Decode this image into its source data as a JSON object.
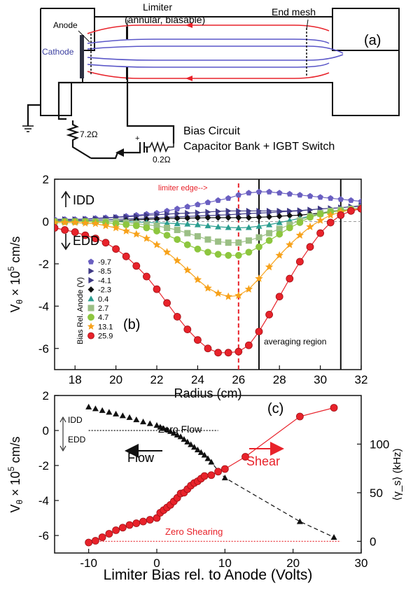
{
  "panel_a": {
    "tag": "(a)",
    "labels": {
      "anode": "Anode",
      "cathode": "Cathode",
      "limiter_line1": "Limiter",
      "limiter_line2": "(annular, biasable)",
      "end_mesh": "End mesh",
      "r1": "7.2Ω",
      "r2": "0.2Ω",
      "bias_line1": "Bias Circuit",
      "bias_line2": "Capacitor Bank + IGBT Switch",
      "plus": "+"
    },
    "colors": {
      "field_red": "#e8222a",
      "field_blue": "#5a56c8",
      "wire": "#111111"
    }
  },
  "chart_data": [
    {
      "type": "line",
      "panel": "(b)",
      "xlabel": "Radius (cm)",
      "ylabel_parts": [
        "V",
        "θ",
        " × 10",
        "5",
        " cm/s"
      ],
      "xlim": [
        17,
        32
      ],
      "ylim": [
        -7,
        2
      ],
      "xticks": [
        18,
        20,
        22,
        24,
        26,
        28,
        30,
        32
      ],
      "yticks": [
        -6,
        -4,
        -2,
        0,
        2
      ],
      "annotations": {
        "limiter_edge": "limiter edge-->",
        "idd": "IDD",
        "edd": "EDD",
        "averaging": "averaging region",
        "legend_title": "Bias Rel. Anode (V)"
      },
      "vlines": [
        {
          "x": 26,
          "style": "dashed-red"
        },
        {
          "x": 27,
          "style": "black"
        },
        {
          "x": 31,
          "style": "black"
        }
      ],
      "series": [
        {
          "name": "-9.7",
          "color": "#6a5fc1",
          "marker": "pentagon",
          "x": [
            17,
            17.5,
            18,
            18.5,
            19,
            19.5,
            20,
            20.5,
            21,
            21.5,
            22,
            22.5,
            23,
            23.5,
            24,
            24.5,
            25,
            25.5,
            26,
            26.5,
            27,
            27.5,
            28,
            28.5,
            29,
            29.5,
            30,
            30.5,
            31,
            31.5,
            32
          ],
          "y": [
            0.1,
            0.1,
            0.1,
            0.12,
            0.15,
            0.18,
            0.2,
            0.25,
            0.3,
            0.35,
            0.4,
            0.5,
            0.6,
            0.7,
            0.8,
            0.9,
            1.0,
            1.1,
            1.25,
            1.35,
            1.4,
            1.4,
            1.35,
            1.3,
            1.25,
            1.2,
            1.15,
            1.1,
            1.05,
            1.0,
            0.95
          ]
        },
        {
          "name": "-8.5",
          "color": "#3f3a86",
          "marker": "triangle-right",
          "x": [
            17,
            17.5,
            18,
            18.5,
            19,
            19.5,
            20,
            20.5,
            21,
            21.5,
            22,
            22.5,
            23,
            23.5,
            24,
            24.5,
            25,
            25.5,
            26,
            26.5,
            27,
            27.5,
            28,
            28.5,
            29,
            29.5,
            30,
            30.5,
            31,
            31.5,
            32
          ],
          "y": [
            0.1,
            0.1,
            0.1,
            0.12,
            0.14,
            0.16,
            0.2,
            0.22,
            0.25,
            0.3,
            0.32,
            0.35,
            0.38,
            0.4,
            0.42,
            0.45,
            0.48,
            0.5,
            0.5,
            0.5,
            0.5,
            0.5,
            0.5,
            0.5,
            0.52,
            0.55,
            0.6,
            0.62,
            0.65,
            0.7,
            0.75
          ]
        },
        {
          "name": "-4.1",
          "color": "#3f3a86",
          "marker": "triangle-right",
          "x": [
            17,
            17.5,
            18,
            18.5,
            19,
            19.5,
            20,
            20.5,
            21,
            21.5,
            22,
            22.5,
            23,
            23.5,
            24,
            24.5,
            25,
            25.5,
            26,
            26.5,
            27,
            27.5,
            28,
            28.5,
            29,
            29.5,
            30,
            30.5,
            31,
            31.5,
            32
          ],
          "y": [
            0.05,
            0.05,
            0.05,
            0.06,
            0.07,
            0.08,
            0.1,
            0.12,
            0.14,
            0.16,
            0.18,
            0.2,
            0.22,
            0.24,
            0.26,
            0.28,
            0.3,
            0.32,
            0.35,
            0.38,
            0.4,
            0.42,
            0.45,
            0.48,
            0.5,
            0.55,
            0.6,
            0.62,
            0.65,
            0.7,
            0.72
          ]
        },
        {
          "name": "-2.3",
          "color": "#111111",
          "marker": "diamond",
          "x": [
            17,
            17.5,
            18,
            18.5,
            19,
            19.5,
            20,
            20.5,
            21,
            21.5,
            22,
            22.5,
            23,
            23.5,
            24,
            24.5,
            25,
            25.5,
            26,
            26.5,
            27,
            27.5,
            28,
            28.5,
            29,
            29.5,
            30,
            30.5,
            31,
            31.5,
            32
          ],
          "y": [
            0,
            0,
            0,
            0,
            0,
            0,
            0.02,
            0.05,
            0.08,
            0.1,
            0.12,
            0.14,
            0.15,
            0.16,
            0.17,
            0.18,
            0.18,
            0.18,
            0.18,
            0.18,
            0.2,
            0.22,
            0.25,
            0.28,
            0.3,
            0.35,
            0.4,
            0.45,
            0.5,
            0.55,
            0.6
          ]
        },
        {
          "name": "0.4",
          "color": "#2a9d8f",
          "marker": "triangle-up",
          "x": [
            17,
            17.5,
            18,
            18.5,
            19,
            19.5,
            20,
            20.5,
            21,
            21.5,
            22,
            22.5,
            23,
            23.5,
            24,
            24.5,
            25,
            25.5,
            26,
            26.5,
            27,
            27.5,
            28,
            28.5,
            29,
            29.5,
            30,
            30.5,
            31,
            31.5,
            32
          ],
          "y": [
            0,
            0,
            0,
            0,
            0,
            0,
            0,
            0,
            -0.02,
            -0.04,
            -0.06,
            -0.08,
            -0.1,
            -0.12,
            -0.15,
            -0.2,
            -0.25,
            -0.28,
            -0.3,
            -0.28,
            -0.22,
            -0.15,
            -0.05,
            0.05,
            0.15,
            0.25,
            0.35,
            0.45,
            0.5,
            0.55,
            0.6
          ]
        },
        {
          "name": "2.7",
          "color": "#9bbf85",
          "marker": "square",
          "x": [
            17,
            17.5,
            18,
            18.5,
            19,
            19.5,
            20,
            20.5,
            21,
            21.5,
            22,
            22.5,
            23,
            23.5,
            24,
            24.5,
            25,
            25.5,
            26,
            26.5,
            27,
            27.5,
            28,
            28.5,
            29,
            29.5,
            30,
            30.5,
            31,
            31.5,
            32
          ],
          "y": [
            0,
            0,
            0,
            0,
            0,
            0,
            0,
            -0.05,
            -0.1,
            -0.15,
            -0.2,
            -0.3,
            -0.4,
            -0.55,
            -0.7,
            -0.85,
            -0.95,
            -1.0,
            -1.0,
            -0.9,
            -0.75,
            -0.55,
            -0.35,
            -0.15,
            0.05,
            0.25,
            0.4,
            0.5,
            0.55,
            0.6,
            0.65
          ]
        },
        {
          "name": "4.7",
          "color": "#8dc63f",
          "marker": "circle",
          "x": [
            17,
            17.5,
            18,
            18.5,
            19,
            19.5,
            20,
            20.5,
            21,
            21.5,
            22,
            22.5,
            23,
            23.5,
            24,
            24.5,
            25,
            25.5,
            26,
            26.5,
            27,
            27.5,
            28,
            28.5,
            29,
            29.5,
            30,
            30.5,
            31,
            31.5,
            32
          ],
          "y": [
            0,
            0,
            0,
            0,
            -0.02,
            -0.05,
            -0.1,
            -0.15,
            -0.2,
            -0.3,
            -0.45,
            -0.65,
            -0.85,
            -1.1,
            -1.3,
            -1.45,
            -1.55,
            -1.6,
            -1.6,
            -1.45,
            -1.2,
            -0.9,
            -0.6,
            -0.3,
            -0.05,
            0.2,
            0.35,
            0.45,
            0.5,
            0.55,
            0.6
          ]
        },
        {
          "name": "13.1",
          "color": "#f7a21b",
          "marker": "star",
          "x": [
            17,
            17.5,
            18,
            18.5,
            19,
            19.5,
            20,
            20.5,
            21,
            21.5,
            22,
            22.5,
            23,
            23.5,
            24,
            24.5,
            25,
            25.5,
            26,
            26.5,
            27,
            27.5,
            28,
            28.5,
            29,
            29.5,
            30,
            30.5,
            31,
            31.5,
            32
          ],
          "y": [
            -0.05,
            -0.05,
            -0.05,
            -0.08,
            -0.1,
            -0.2,
            -0.3,
            -0.45,
            -0.6,
            -0.8,
            -1.1,
            -1.45,
            -1.85,
            -2.3,
            -2.75,
            -3.15,
            -3.4,
            -3.55,
            -3.5,
            -3.2,
            -2.7,
            -2.15,
            -1.6,
            -1.1,
            -0.65,
            -0.25,
            0.05,
            0.3,
            0.45,
            0.55,
            0.6
          ]
        },
        {
          "name": "25.9",
          "color": "#e8222a",
          "marker": "circle",
          "x": [
            17,
            17.5,
            18,
            18.5,
            19,
            19.5,
            20,
            20.5,
            21,
            21.5,
            22,
            22.5,
            23,
            23.5,
            24,
            24.5,
            25,
            25.5,
            26,
            26.5,
            27,
            27.5,
            28,
            28.5,
            29,
            29.5,
            30,
            30.5,
            31,
            31.5,
            32
          ],
          "y": [
            -0.3,
            -0.4,
            -0.5,
            -0.65,
            -0.8,
            -1.0,
            -1.3,
            -1.65,
            -2.1,
            -2.6,
            -3.2,
            -3.85,
            -4.5,
            -5.1,
            -5.6,
            -6.0,
            -6.2,
            -6.2,
            -6.15,
            -5.85,
            -5.2,
            -4.4,
            -3.55,
            -2.7,
            -1.9,
            -1.2,
            -0.55,
            -0.05,
            0.3,
            0.5,
            0.6
          ]
        }
      ]
    },
    {
      "type": "scatter",
      "panel": "(c)",
      "xlabel": "Limiter Bias rel. to Anode (Volts)",
      "ylabel_parts": [
        "V",
        "θ",
        " × 10",
        "5",
        " cm/s"
      ],
      "y2label": "⟨γ_s⟩ (kHz)",
      "xlim": [
        -15,
        30
      ],
      "ylim": [
        -7,
        2
      ],
      "y2lim": [
        -12,
        150
      ],
      "xticks": [
        -10,
        0,
        10,
        20,
        30
      ],
      "yticks": [
        -6,
        -4,
        -2,
        0,
        2
      ],
      "y2ticks": [
        0,
        50,
        100
      ],
      "annotations": {
        "zero_flow": "Zero Flow",
        "zero_shearing": "Zero Shearing",
        "flow": "Flow",
        "shear": "Shear",
        "idd": "IDD",
        "edd": "EDD"
      },
      "series": [
        {
          "name": "Flow",
          "axis": "left",
          "color": "#111111",
          "marker": "triangle-up",
          "x": [
            -10,
            -9,
            -8,
            -7,
            -6,
            -5,
            -4,
            -3,
            -2,
            -1,
            0,
            0.5,
            1,
            1.5,
            2,
            2.5,
            3,
            3.5,
            4,
            4.5,
            5,
            5.5,
            6,
            6.5,
            7,
            7.5,
            8,
            9,
            10,
            21,
            26
          ],
          "y": [
            1.35,
            1.25,
            1.15,
            1.05,
            0.95,
            0.85,
            0.75,
            0.62,
            0.5,
            0.4,
            0.3,
            0.2,
            0.12,
            0.05,
            -0.05,
            -0.15,
            -0.25,
            -0.35,
            -0.5,
            -0.65,
            -0.8,
            -0.95,
            -1.1,
            -1.25,
            -1.4,
            -1.6,
            -1.8,
            -2.3,
            -2.7,
            -5.2,
            -6.1
          ]
        },
        {
          "name": "Shear",
          "axis": "right",
          "color": "#e8222a",
          "marker": "circle",
          "x": [
            -10,
            -9,
            -8,
            -7,
            -6,
            -5,
            -4,
            -3,
            -2,
            -1,
            0,
            0.5,
            1,
            1.5,
            2,
            2.5,
            3,
            3.5,
            4,
            4.5,
            5,
            5.5,
            6,
            6.5,
            7,
            8,
            9,
            10,
            13,
            21,
            26
          ],
          "y": [
            -6.4,
            -6.3,
            -6.1,
            -5.9,
            -5.7,
            -5.55,
            -5.4,
            -5.3,
            -5.2,
            -5.1,
            -5.0,
            -4.7,
            -4.55,
            -4.4,
            -4.25,
            -4.05,
            -3.85,
            -3.6,
            -3.55,
            -3.35,
            -3.15,
            -3.0,
            -2.9,
            -2.75,
            -2.6,
            -2.55,
            -2.35,
            -2.2,
            -1.5,
            0.8,
            1.3
          ]
        }
      ]
    }
  ]
}
